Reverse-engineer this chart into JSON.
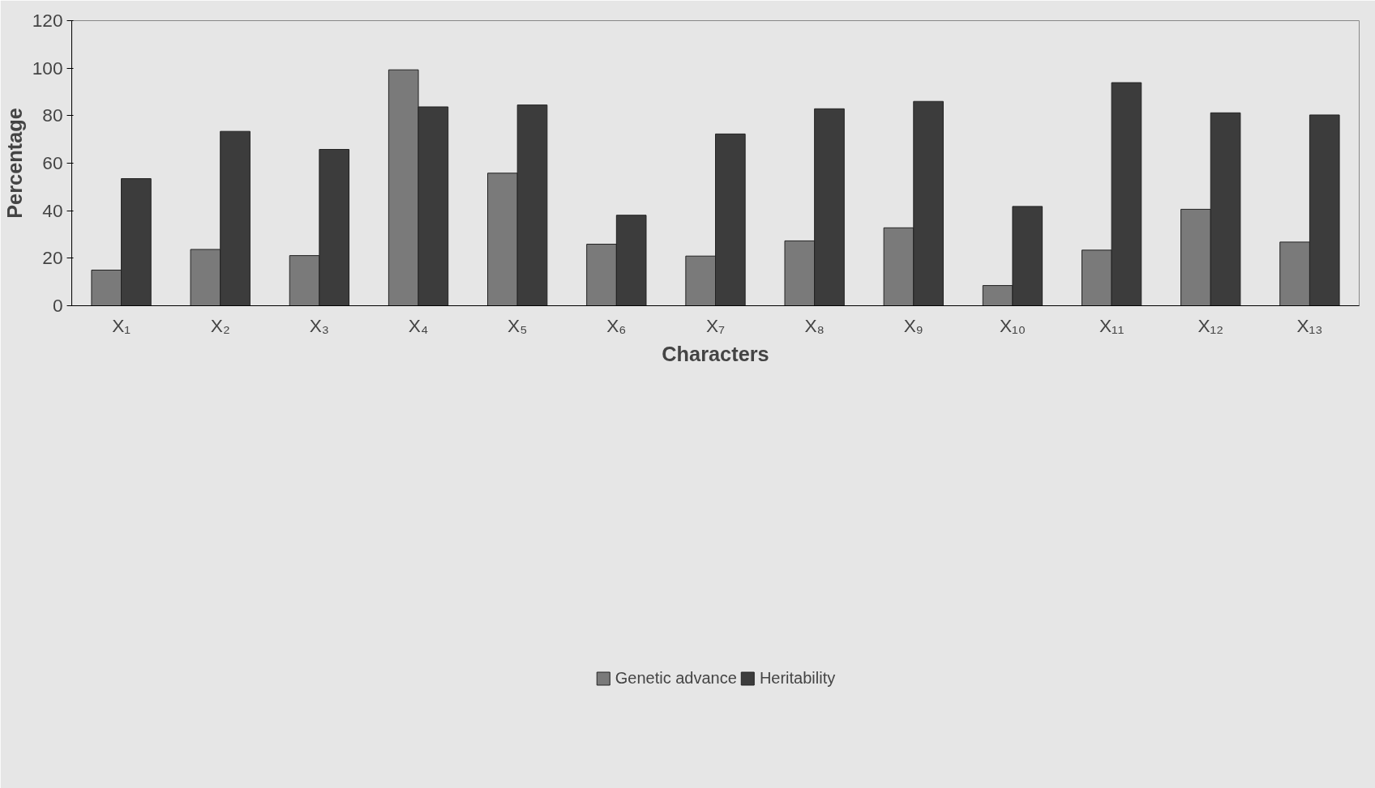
{
  "chart_data": {
    "type": "bar",
    "xlabel": "Characters",
    "ylabel": "Percentage",
    "categories": [
      "X₁",
      "X₂",
      "X₃",
      "X₄",
      "X₅",
      "X₆",
      "X₇",
      "X₈",
      "X₉",
      "X₁₀",
      "X₁₁",
      "X₁₂",
      "X₁₃"
    ],
    "series": [
      {
        "name": "Genetic advance",
        "color": "#7a7a7a",
        "values": [
          15,
          23.7,
          21.1,
          99.3,
          55.8,
          25.9,
          20.9,
          27.3,
          32.8,
          8.5,
          23.4,
          40.6,
          26.8
        ]
      },
      {
        "name": "Heritability",
        "color": "#3c3c3c",
        "values": [
          53.5,
          73.4,
          65.8,
          83.7,
          84.5,
          38.1,
          72.3,
          82.9,
          86,
          41.8,
          93.9,
          81.2,
          80.3
        ]
      }
    ],
    "ylim": [
      0,
      120
    ],
    "yticks": [
      0,
      20,
      40,
      60,
      80,
      100,
      120
    ],
    "grid": false,
    "legend": "bottom"
  }
}
